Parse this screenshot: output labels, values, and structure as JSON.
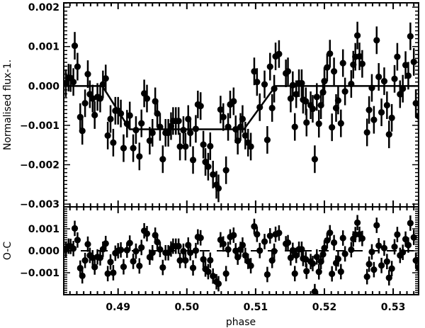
{
  "chart_data": [
    {
      "type": "scatter",
      "panel": "top",
      "xlabel": "",
      "ylabel": "Normalised flux-1.",
      "xlim": [
        0.4821,
        0.5337
      ],
      "ylim": [
        -0.00307,
        0.00211
      ],
      "x_ticks": [
        0.49,
        0.5,
        0.51,
        0.52,
        0.53
      ],
      "y_ticks": [
        0.002,
        0.001,
        0.0,
        -0.001,
        -0.002,
        -0.003
      ],
      "y_tick_labels": [
        "0.002",
        "0.001",
        "0.000",
        "−0.001",
        "−0.002",
        "−0.003"
      ],
      "error_bar": 0.00035,
      "marker_color": "#000000",
      "model_line": [
        [
          0.4821,
          0
        ],
        [
          0.4877,
          0
        ],
        [
          0.4917,
          -0.0011
        ],
        [
          0.5083,
          -0.0011
        ],
        [
          0.5129,
          0
        ],
        [
          0.5337,
          0
        ]
      ],
      "x": [
        0.4824,
        0.4828,
        0.4831,
        0.4835,
        0.4837,
        0.4841,
        0.4845,
        0.4848,
        0.4852,
        0.4856,
        0.4859,
        0.4863,
        0.4866,
        0.487,
        0.4874,
        0.4878,
        0.4882,
        0.4885,
        0.4889,
        0.4893,
        0.4896,
        0.49,
        0.4904,
        0.4908,
        0.4913,
        0.4917,
        0.4922,
        0.4926,
        0.4931,
        0.4934,
        0.4938,
        0.4942,
        0.4946,
        0.495,
        0.4954,
        0.4957,
        0.4961,
        0.4965,
        0.4969,
        0.4973,
        0.4977,
        0.498,
        0.4984,
        0.4988,
        0.499,
        0.4995,
        0.4998,
        0.5002,
        0.5005,
        0.5009,
        0.5013,
        0.5016,
        0.502,
        0.5024,
        0.5027,
        0.5031,
        0.5034,
        0.5038,
        0.5043,
        0.5046,
        0.5049,
        0.5053,
        0.5057,
        0.506,
        0.5063,
        0.5068,
        0.5071,
        0.5074,
        0.5078,
        0.5081,
        0.5085,
        0.5089,
        0.5093,
        0.5098,
        0.5102,
        0.5106,
        0.5113,
        0.5117,
        0.5121,
        0.5124,
        0.5127,
        0.5129,
        0.5134,
        0.5144,
        0.5147,
        0.5151,
        0.5154,
        0.5157,
        0.5159,
        0.5163,
        0.5167,
        0.5169,
        0.5173,
        0.5174,
        0.518,
        0.5183,
        0.5186,
        0.5189,
        0.5192,
        0.5195,
        0.5198,
        0.52,
        0.5204,
        0.5208,
        0.5211,
        0.5214,
        0.5217,
        0.522,
        0.5224,
        0.5227,
        0.523,
        0.5239,
        0.5242,
        0.5245,
        0.5248,
        0.5251,
        0.5255,
        0.5262,
        0.5265,
        0.5269,
        0.5272,
        0.5276,
        0.5279,
        0.5283,
        0.5287,
        0.5291,
        0.5294,
        0.5298,
        0.5302,
        0.5306,
        0.531,
        0.5314,
        0.5318,
        0.5322,
        0.5325,
        0.533,
        0.5333,
        0.5337
      ],
      "y": [
        7e-05,
        0.00021,
        0.0002,
        0.0001,
        0.00102,
        0.00049,
        -0.00079,
        -0.00114,
        -0.00044,
        0.0003,
        -0.00021,
        -0.00032,
        -0.00074,
        -0.00028,
        -0.00032,
        4e-05,
        0.00019,
        -0.00126,
        -0.00084,
        -0.00144,
        -0.00063,
        -0.00063,
        -0.0007,
        -0.00158,
        -0.00096,
        -0.00075,
        -0.00158,
        -0.00112,
        -0.00179,
        -0.00095,
        -0.00019,
        -0.00032,
        -0.00139,
        -0.00119,
        -0.00039,
        -0.0007,
        -0.00104,
        -0.00186,
        -0.00119,
        -0.00119,
        -0.00102,
        -0.00089,
        -0.00089,
        -0.00089,
        -0.00154,
        -0.00112,
        -0.00154,
        -0.00084,
        -0.00119,
        -0.00188,
        -0.00109,
        -0.00047,
        -0.00051,
        -0.00149,
        -0.00193,
        -0.00205,
        -0.00153,
        -0.00225,
        -0.00251,
        -0.0026,
        -0.0006,
        -0.00079,
        -0.00214,
        -0.00104,
        -0.00047,
        -0.00039,
        -0.0011,
        -0.00139,
        -0.00104,
        -0.00084,
        -0.00126,
        -0.00144,
        -0.00154,
        0.00037,
        0.0001,
        -0.00054,
        4e-05,
        -0.00137,
        0.00049,
        -0.00056,
        -7e-05,
        0.00075,
        0.00081,
        0.00032,
        0.00037,
        -0.00032,
        2e-05,
        -0.00104,
        -0.00021,
        7e-05,
        7e-05,
        -0.00035,
        -0.00039,
        -0.00093,
        -0.00049,
        -0.00058,
        -0.00186,
        -0.00028,
        -0.00096,
        -0.00049,
        -0.00016,
        0.00012,
        0.00047,
        0.00082,
        -0.00105,
        0.00037,
        -0.00056,
        -0.00037,
        -0.00095,
        0.00058,
        -0.00014,
        5e-05,
        0.00054,
        0.00074,
        0.00128,
        0.00075,
        0.00056,
        -0.00118,
        -0.00061,
        -5e-05,
        -0.00086,
        0.00116,
        0.00023,
        -0.00067,
        0.00012,
        -0.00049,
        -0.00123,
        -0.00081,
        0.00018,
        0.00074,
        -0.00021,
        -7e-05,
        0.00053,
        0.00026,
        0.00126,
        0.00061,
        -0.00044,
        -0.00077
      ]
    },
    {
      "type": "scatter",
      "panel": "bottom",
      "xlabel": "phase",
      "ylabel": "O-C",
      "xlim": [
        0.4821,
        0.5337
      ],
      "ylim": [
        -0.002,
        0.002
      ],
      "x_ticks": [
        0.49,
        0.5,
        0.51,
        0.52,
        0.53
      ],
      "x_tick_labels": [
        "0.49",
        "0.50",
        "0.51",
        "0.52",
        "0.53"
      ],
      "y_ticks": [
        0.001,
        0.0,
        -0.001
      ],
      "y_tick_labels": [
        "0.001",
        "0.000",
        "−0.001"
      ],
      "error_bar": 0.00035,
      "reference_line": 0,
      "reference_line_style": "dashed",
      "y": [
        7e-05,
        0.00021,
        0.0002,
        0.0001,
        0.00102,
        0.00049,
        -0.00079,
        -0.00114,
        -0.00044,
        0.0003,
        -0.00021,
        -0.00032,
        -0.00074,
        -0.00028,
        -0.00032,
        7e-05,
        0.00033,
        -0.00104,
        -0.00051,
        -0.001,
        -0.00011,
        0.0,
        4e-05,
        -0.00073,
        3e-05,
        0.00035,
        -0.00048,
        -2e-05,
        -0.00069,
        0.00015,
        0.00091,
        0.00078,
        -0.00029,
        -9e-05,
        0.00071,
        0.0004,
        6e-05,
        -0.00076,
        -9e-05,
        -9e-05,
        8e-05,
        0.00021,
        0.00021,
        0.00021,
        -0.00044,
        -2e-05,
        -0.00044,
        0.00026,
        -9e-05,
        -0.00078,
        1e-05,
        0.00063,
        0.00059,
        -0.00039,
        -0.00083,
        -0.00095,
        -0.00043,
        -0.00115,
        -0.00141,
        -0.0015,
        0.0005,
        0.00031,
        -0.00104,
        6e-05,
        0.00063,
        0.00071,
        0.0,
        -0.00029,
        6e-05,
        0.00026,
        -0.00021,
        -0.00048,
        -0.00068,
        0.00111,
        0.00075,
        1e-05,
        0.00042,
        -0.00108,
        0.00068,
        -0.00044,
        -2e-05,
        0.00075,
        0.00081,
        0.00032,
        0.00037,
        -0.00032,
        2e-05,
        -0.00104,
        -0.00021,
        7e-05,
        7e-05,
        -0.00035,
        -0.00039,
        -0.00093,
        -0.00049,
        -0.00058,
        -0.00186,
        -0.00028,
        -0.00096,
        -0.00049,
        -0.00016,
        0.00012,
        0.00047,
        0.00082,
        -0.00105,
        0.00037,
        -0.00056,
        -0.00037,
        -0.00095,
        0.00058,
        -0.00014,
        5e-05,
        0.00054,
        0.00074,
        0.00128,
        0.00075,
        0.00056,
        -0.00118,
        -0.00061,
        -5e-05,
        -0.00086,
        0.00116,
        0.00023,
        -0.00067,
        0.00012,
        -0.00049,
        -0.00123,
        -0.00081,
        0.00018,
        0.00074,
        -0.00021,
        -7e-05,
        0.00053,
        0.00026,
        0.00126,
        0.00061,
        -0.00044,
        -0.00077
      ]
    }
  ]
}
